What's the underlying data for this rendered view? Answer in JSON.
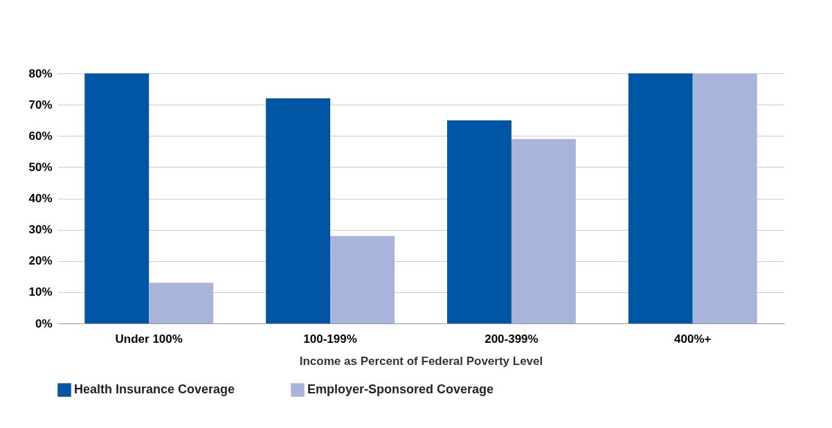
{
  "chart_data": {
    "type": "bar",
    "xlabel": "Income as Percent of Federal Poverty Level",
    "categories": [
      "Under 100%",
      "100-199%",
      "200-399%",
      "400%+"
    ],
    "series": [
      {
        "name": "Health Insurance Coverage",
        "color": "#0055a5",
        "values": [
          80,
          72,
          65,
          80
        ]
      },
      {
        "name": "Employer-Sponsored Coverage",
        "color": "#a8b4dc",
        "values": [
          13,
          28,
          59,
          80
        ]
      }
    ],
    "ylim": [
      0,
      80
    ],
    "yticks": [
      {
        "value": 0,
        "label": "0%"
      },
      {
        "value": 10,
        "label": "10%"
      },
      {
        "value": 20,
        "label": "20%"
      },
      {
        "value": 30,
        "label": "30%"
      },
      {
        "value": 40,
        "label": "40%"
      },
      {
        "value": 50,
        "label": "50%"
      },
      {
        "value": 60,
        "label": "60%"
      },
      {
        "value": 70,
        "label": "70%"
      },
      {
        "value": 80,
        "label": "80%"
      }
    ],
    "grid": "y",
    "legend": "bottom"
  }
}
